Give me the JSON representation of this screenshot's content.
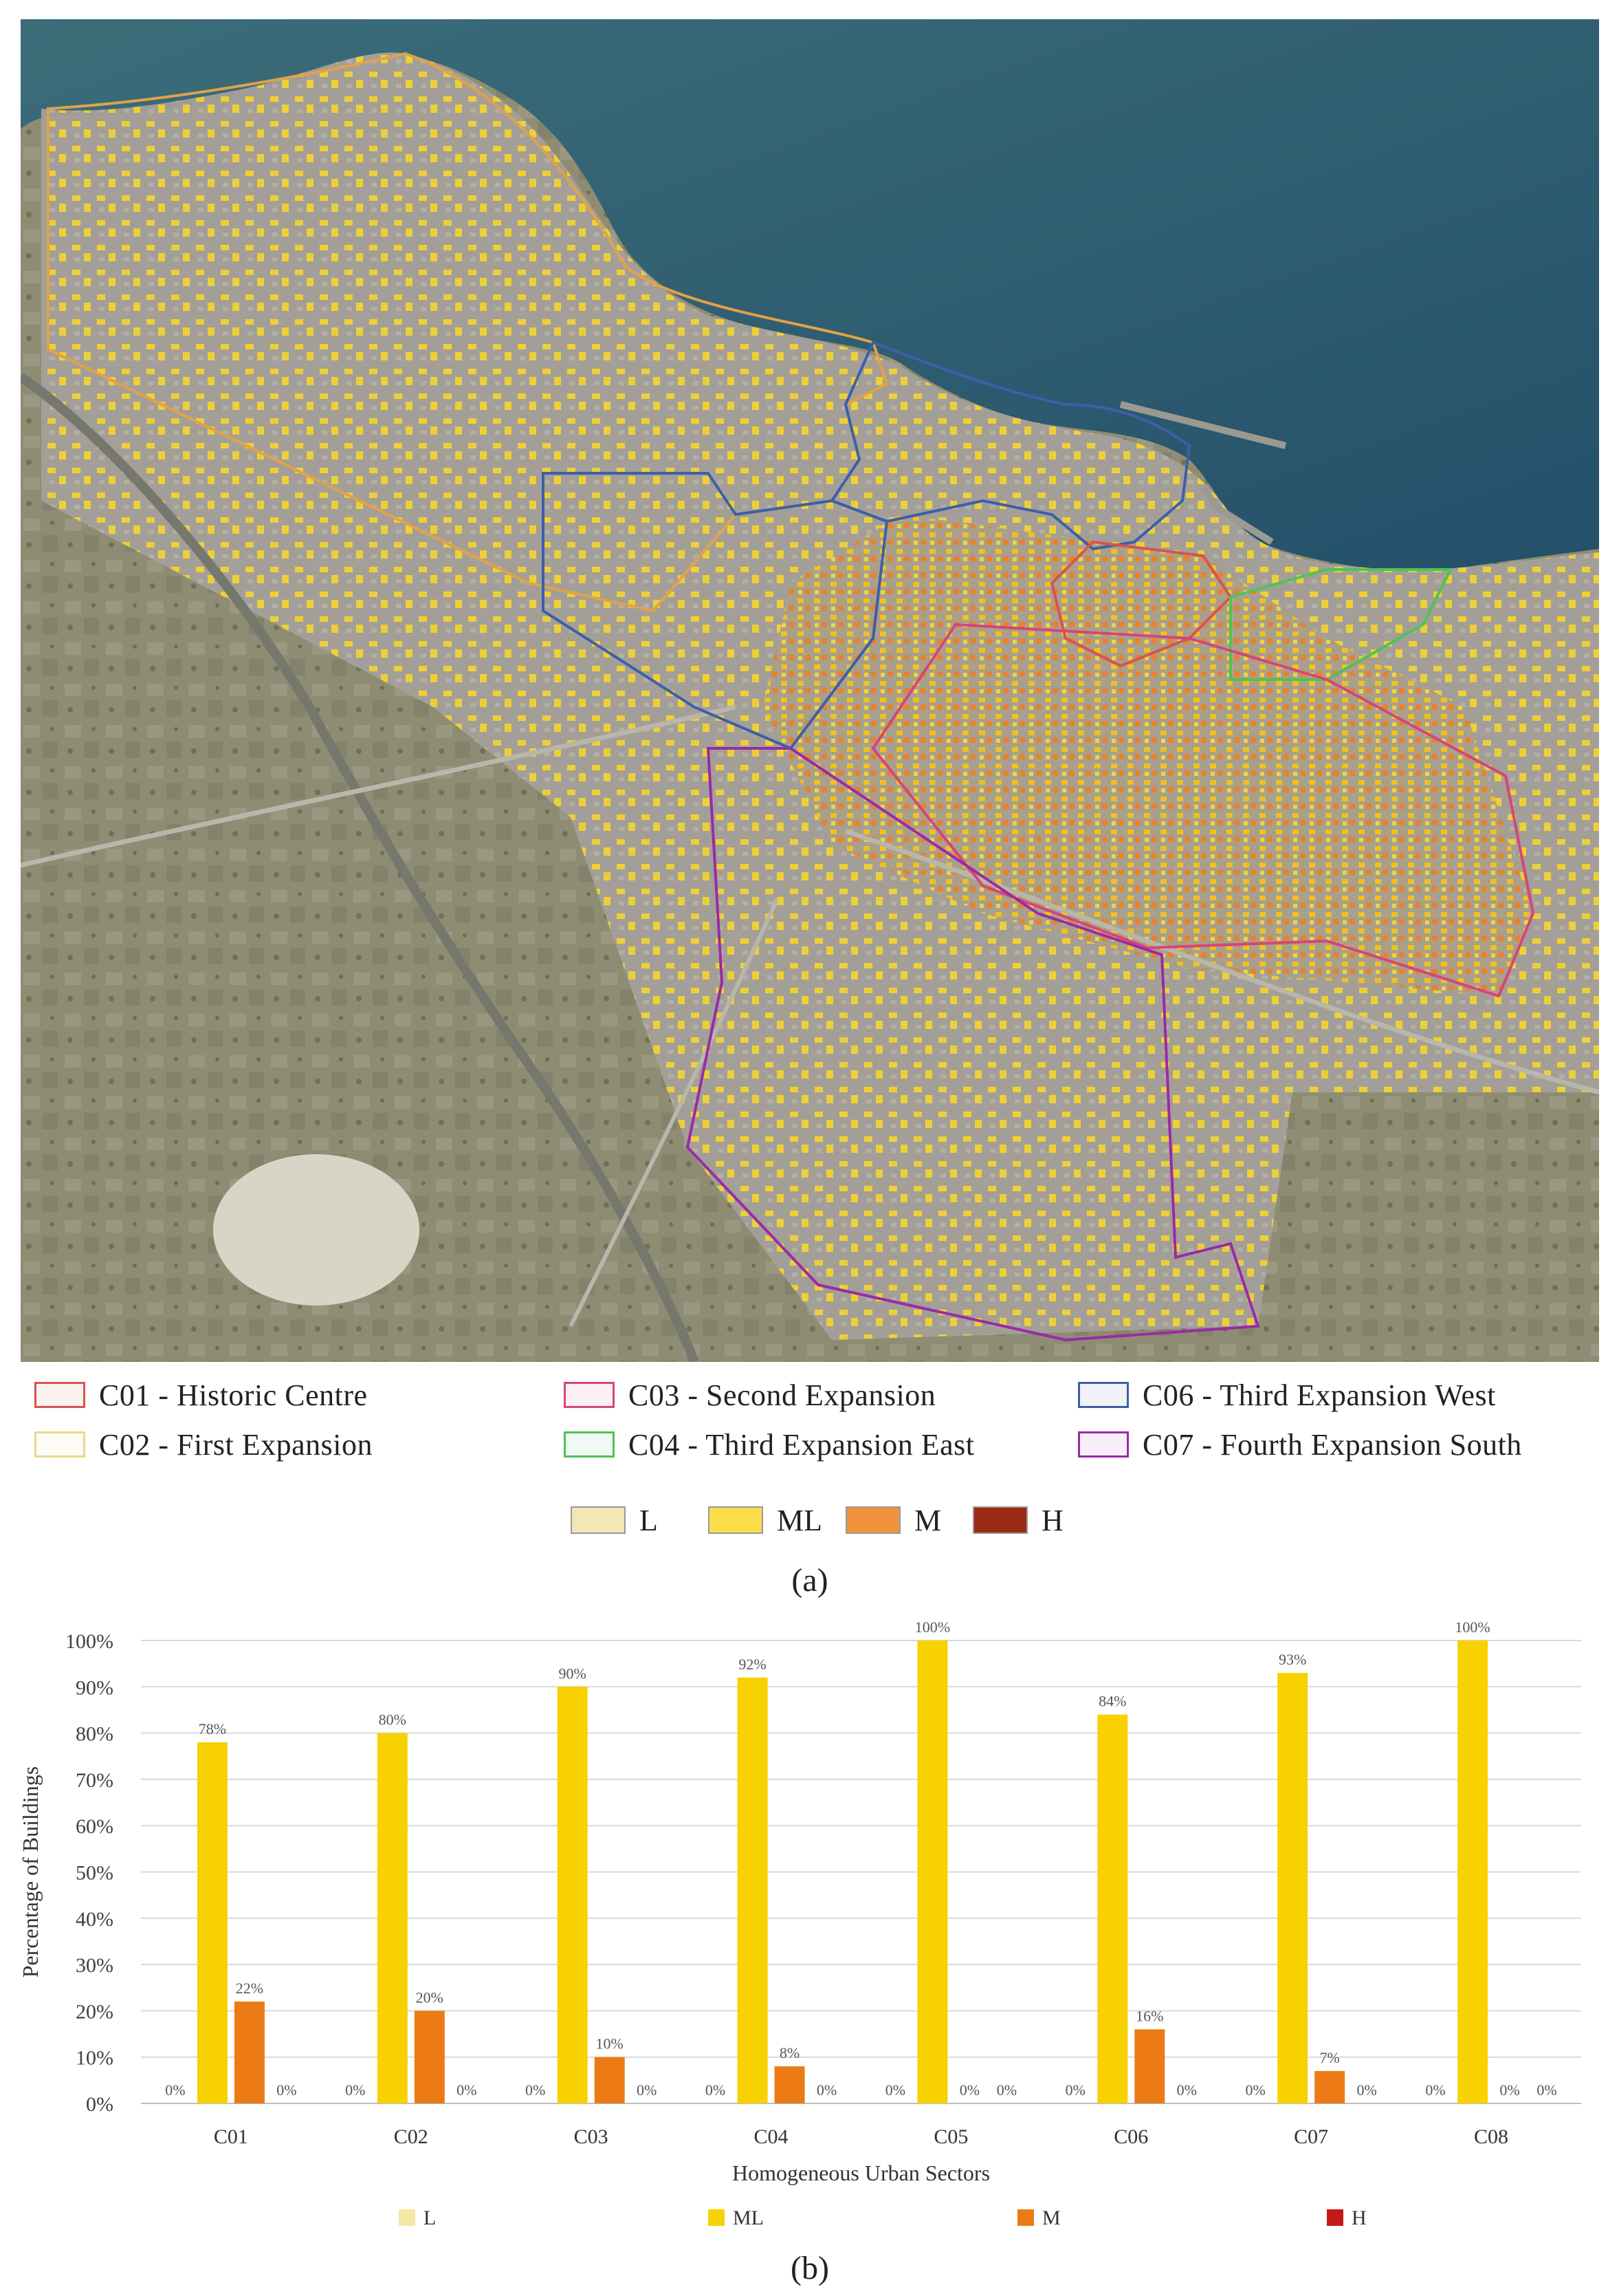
{
  "map": {
    "zones": [
      {
        "code": "C01",
        "label": "C01 - Historic Centre",
        "color": "#d9534f"
      },
      {
        "code": "C02",
        "label": "C02 - First Expansion",
        "color": "#e8d98a"
      },
      {
        "code": "C03",
        "label": "C03 - Second Expansion",
        "color": "#d6457a"
      },
      {
        "code": "C04",
        "label": "C04 - Third Expansion East",
        "color": "#4fc255"
      },
      {
        "code": "C06",
        "label": "C06 - Third Expansion West",
        "color": "#3d5fa8"
      },
      {
        "code": "C07",
        "label": "C07 - Fourth Expansion South",
        "color": "#9b2aa6"
      }
    ],
    "classes": [
      {
        "label": "L",
        "color": "#f3e7b6"
      },
      {
        "label": "ML",
        "color": "#f9de4a"
      },
      {
        "label": "M",
        "color": "#f0923c"
      },
      {
        "label": "H",
        "color": "#9b2a12"
      }
    ],
    "caption": "(a)"
  },
  "chart_data": {
    "type": "bar",
    "categories": [
      "C01",
      "C02",
      "C03",
      "C04",
      "C05",
      "C06",
      "C07",
      "C08"
    ],
    "series": [
      {
        "name": "L",
        "values": [
          0,
          0,
          0,
          0,
          0,
          0,
          0,
          0
        ],
        "color": "#f5e7a6"
      },
      {
        "name": "ML",
        "values": [
          78,
          80,
          90,
          92,
          100,
          84,
          93,
          100
        ],
        "color": "#f7d100"
      },
      {
        "name": "M",
        "values": [
          22,
          20,
          10,
          8,
          0,
          16,
          7,
          0
        ],
        "color": "#ec7b16"
      },
      {
        "name": "H",
        "values": [
          0,
          0,
          0,
          0,
          0,
          0,
          0,
          0
        ],
        "color": "#c41a16"
      }
    ],
    "xlabel": "Homogeneous Urban Sectors",
    "ylabel": "Percentage of Buildings",
    "ylim": [
      0,
      100
    ],
    "yticks": [
      "0%",
      "10%",
      "20%",
      "30%",
      "40%",
      "50%",
      "60%",
      "70%",
      "80%",
      "90%",
      "100%"
    ],
    "grid": true,
    "legend": "bottom",
    "caption": "(b)"
  }
}
